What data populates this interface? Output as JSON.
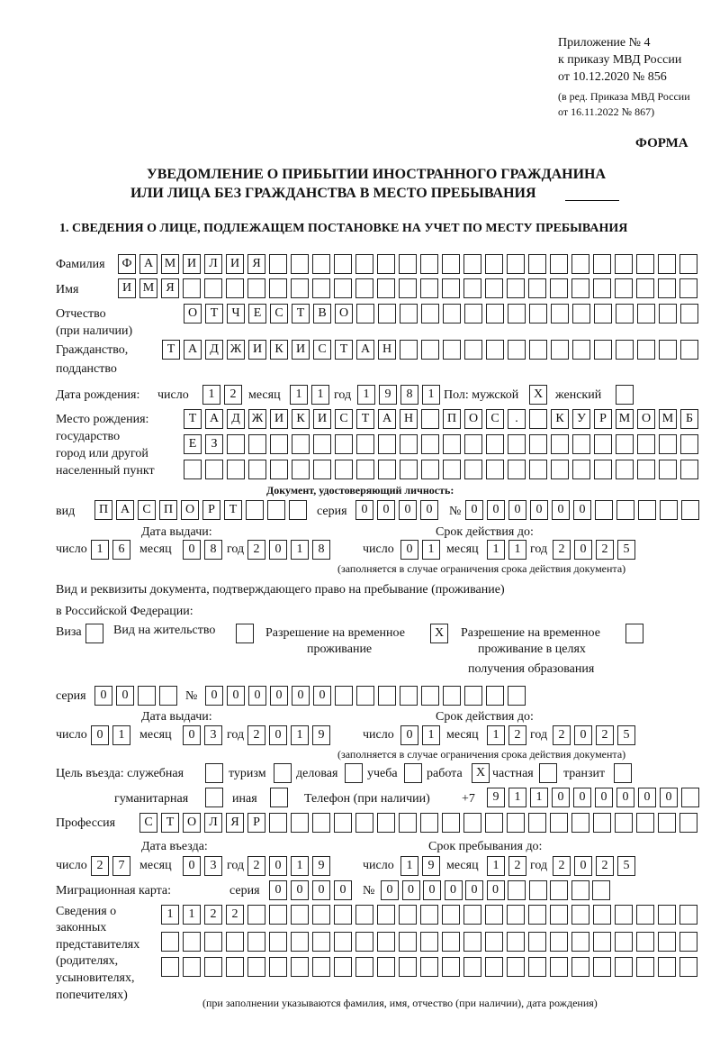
{
  "header": {
    "appendix": "Приложение № 4",
    "order": "к приказу МВД России",
    "order_date": "от 10.12.2020 № 856",
    "edition1": "(в ред. Приказа МВД России",
    "edition2": "от 16.11.2022 № 867)",
    "form": "ФОРМА",
    "title1": "УВЕДОМЛЕНИЕ О ПРИБЫТИИ ИНОСТРАННОГО ГРАЖДАНИНА",
    "title2": "ИЛИ ЛИЦА БЕЗ ГРАЖДАНСТВА В МЕСТО ПРЕБЫВАНИЯ",
    "section1": "1. СВЕДЕНИЯ О ЛИЦЕ, ПОДЛЕЖАЩЕМ ПОСТАНОВКЕ НА УЧЕТ ПО МЕСТУ ПРЕБЫВАНИЯ"
  },
  "person": {
    "surname": {
      "label": "Фамилия",
      "value": "ФАМИЛИЯ"
    },
    "name": {
      "label": "Имя",
      "value": "ИМЯ"
    },
    "patronymic": {
      "label1": "Отчество",
      "label2": "(при наличии)",
      "value": "ОТЧЕСТВО"
    },
    "citizenship": {
      "label1": "Гражданство,",
      "label2": "подданство",
      "value": "ТАДЖИКИСТАН"
    },
    "birth": {
      "label": "Дата рождения:",
      "day_label": "число",
      "day": "12",
      "month_label": "месяц",
      "month": "11",
      "year_label": "год",
      "year": "1981"
    },
    "sex": {
      "label": "Пол: мужской",
      "male": "X",
      "female_label": "женский",
      "female": ""
    },
    "birthplace": {
      "label1": "Место рождения:",
      "label2": "государство",
      "label3": "город или другой",
      "label4": "населенный пункт",
      "line1": "ТАДЖИКИСТАН ПОС. КУРМОМБ",
      "line2": "ЕЗ",
      "line3": ""
    }
  },
  "identity_doc": {
    "heading": "Документ, удостоверяющий личность:",
    "type_label": "вид",
    "type": "ПАСПОРТ",
    "series_label": "серия",
    "series": "0000",
    "number_label": "№",
    "number": "000000",
    "issue_label": "Дата выдачи:",
    "valid_label": "Срок действия до:",
    "day_label": "число",
    "month_label": "месяц",
    "year_label": "год",
    "issue_day": "16",
    "issue_month": "08",
    "issue_year": "2018",
    "valid_day": "01",
    "valid_month": "11",
    "valid_year": "2025",
    "note": "(заполняется в случае ограничения срока действия документа)"
  },
  "stay_doc": {
    "heading1": "Вид и реквизиты документа, подтверждающего право на пребывание (проживание)",
    "heading2": "в Российской Федерации:",
    "visa_label": "Виза",
    "visa": "",
    "residence_label": "Вид на жительство",
    "residence": "",
    "temp_label1": "Разрешение на временное",
    "temp_label2": "проживание",
    "temp": "X",
    "edu_label1": "Разрешение на временное",
    "edu_label2": "проживание в целях",
    "edu_label3": "получения образования",
    "edu": "",
    "series_label": "серия",
    "series": "00",
    "number_label": "№",
    "number": "000000",
    "issue_label": "Дата выдачи:",
    "valid_label": "Срок действия до:",
    "day_label": "число",
    "month_label": "месяц",
    "year_label": "год",
    "issue_day": "01",
    "issue_month": "03",
    "issue_year": "2019",
    "valid_day": "01",
    "valid_month": "12",
    "valid_year": "2025",
    "note": "(заполняется в случае ограничения срока действия документа)"
  },
  "purpose": {
    "label": "Цель въезда: служебная",
    "official": "",
    "tourism_label": "туризм",
    "tourism": "",
    "business_label": "деловая",
    "business": "",
    "study_label": "учеба",
    "study": "",
    "work_label": "работа",
    "work": "X",
    "private_label": "частная",
    "private": "",
    "transit_label": "транзит",
    "transit": "",
    "humanitarian_label": "гуманитарная",
    "humanitarian": "",
    "other_label": "иная",
    "other": "",
    "phone_label": "Телефон (при наличии)",
    "phone_prefix": "+7",
    "phone": "911000000"
  },
  "profession": {
    "label": "Профессия",
    "value": "СТОЛЯР"
  },
  "entry": {
    "entry_label": "Дата въезда:",
    "stay_label": "Срок пребывания до:",
    "day_label": "число",
    "month_label": "месяц",
    "year_label": "год",
    "entry_day": "27",
    "entry_month": "03",
    "entry_year": "2019",
    "stay_day": "19",
    "stay_month": "12",
    "stay_year": "2025"
  },
  "migration_card": {
    "label": "Миграционная карта:",
    "series_label": "серия",
    "series": "0000",
    "number_label": "№",
    "number": "000000"
  },
  "representatives": {
    "label1": "Сведения о",
    "label2": "законных",
    "label3": "представителях",
    "label4": "(родителях,",
    "label5": "усыновителях,",
    "label6": "попечителях)",
    "line1": "1122",
    "line2": "",
    "line3": "",
    "note": "(при заполнении указываются фамилия, имя, отчество (при наличии), дата рождения)"
  }
}
